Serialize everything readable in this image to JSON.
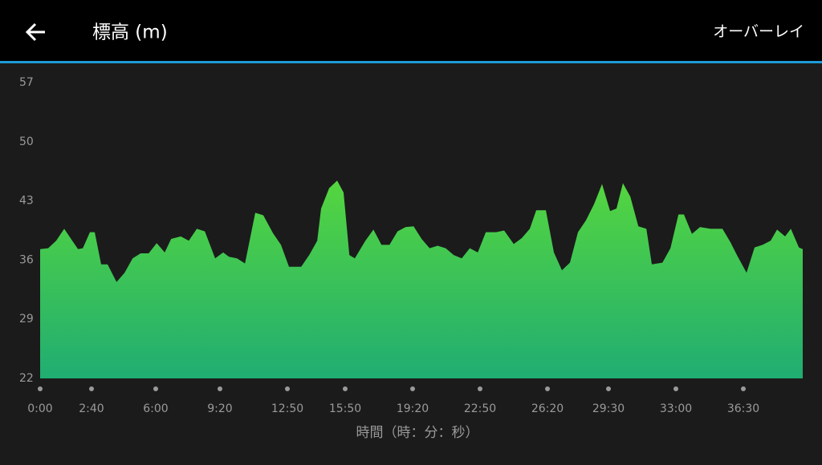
{
  "header": {
    "title": "標高 (m)",
    "action": "オーバーレイ"
  },
  "chart_data": {
    "type": "area",
    "color": "#55d63f",
    "xlabel": "時間（時：分：秒）",
    "x": [
      0,
      25,
      50,
      75,
      100,
      118,
      133,
      155,
      170,
      190,
      210,
      238,
      263,
      288,
      313,
      338,
      363,
      388,
      408,
      438,
      463,
      488,
      513,
      545,
      570,
      588,
      613,
      638,
      670,
      695,
      725,
      750,
      775,
      813,
      838,
      863,
      875,
      900,
      925,
      945,
      963,
      980,
      1013,
      1038,
      1063,
      1088,
      1113,
      1138,
      1163,
      1188,
      1213,
      1238,
      1263,
      1288,
      1313,
      1338,
      1363,
      1388,
      1420,
      1445,
      1475,
      1500,
      1525,
      1545,
      1575,
      1600,
      1625,
      1650,
      1675,
      1700,
      1725,
      1750,
      1775,
      1795,
      1815,
      1838,
      1863,
      1888,
      1905,
      1938,
      1963,
      1988,
      2005,
      2030,
      2055,
      2088,
      2125,
      2150,
      2170,
      2200,
      2225,
      2250,
      2275,
      2295,
      2320,
      2338,
      2363,
      2375
    ],
    "values": [
      37.3,
      37.4,
      38.3,
      39.7,
      38.3,
      37.3,
      37.4,
      39.3,
      39.3,
      35.5,
      35.5,
      33.4,
      34.5,
      36.2,
      36.8,
      36.8,
      38.0,
      36.9,
      38.5,
      38.8,
      38.3,
      39.7,
      39.4,
      36.2,
      36.9,
      36.4,
      36.2,
      35.6,
      41.6,
      41.3,
      39.2,
      37.8,
      35.2,
      35.2,
      36.6,
      38.3,
      42.1,
      44.5,
      45.4,
      44.0,
      36.6,
      36.2,
      38.3,
      39.6,
      37.8,
      37.8,
      39.4,
      39.9,
      40.0,
      38.5,
      37.4,
      37.7,
      37.4,
      36.6,
      36.2,
      37.4,
      36.9,
      39.3,
      39.3,
      39.5,
      37.9,
      38.6,
      39.7,
      41.9,
      41.9,
      36.9,
      34.8,
      35.7,
      39.3,
      40.7,
      42.6,
      45.0,
      41.8,
      42.1,
      45.1,
      43.5,
      40.0,
      39.7,
      35.5,
      35.7,
      37.4,
      41.4,
      41.4,
      39.1,
      39.9,
      39.7,
      39.7,
      38.1,
      36.6,
      34.5,
      37.5,
      37.8,
      38.3,
      39.6,
      38.8,
      39.7,
      37.5,
      37.3
    ],
    "xlim": [
      0,
      2375
    ],
    "xticks": [
      {
        "value": 0,
        "label": "0:00"
      },
      {
        "value": 160,
        "label": "2:40"
      },
      {
        "value": 360,
        "label": "6:00"
      },
      {
        "value": 560,
        "label": "9:20"
      },
      {
        "value": 770,
        "label": "12:50"
      },
      {
        "value": 950,
        "label": "15:50"
      },
      {
        "value": 1160,
        "label": "19:20"
      },
      {
        "value": 1370,
        "label": "22:50"
      },
      {
        "value": 1580,
        "label": "26:20"
      },
      {
        "value": 1770,
        "label": "29:30"
      },
      {
        "value": 1980,
        "label": "33:00"
      },
      {
        "value": 2190,
        "label": "36:30"
      }
    ],
    "ylim": [
      22,
      57
    ],
    "yticks": [
      22,
      29,
      36,
      43,
      50,
      57
    ]
  }
}
